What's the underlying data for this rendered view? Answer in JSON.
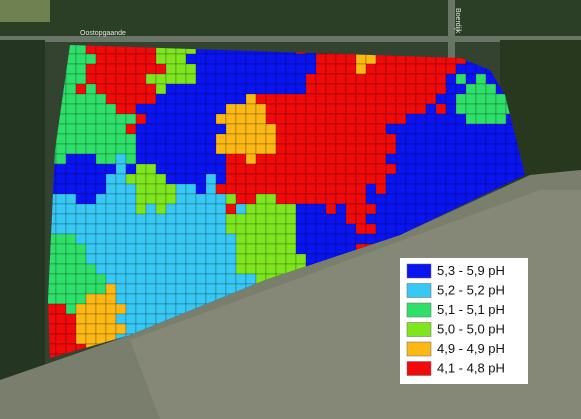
{
  "map": {
    "road_labels": [
      "Oostopgaande",
      "Boerdijk"
    ],
    "legend": [
      {
        "label": "5,3 - 5,9 pH",
        "color": "#0a14f0"
      },
      {
        "label": "5,2 - 5,2 pH",
        "color": "#38c8f4"
      },
      {
        "label": "5,1 - 5,1 pH",
        "color": "#2ee06a"
      },
      {
        "label": "5,0 - 5,0 pH",
        "color": "#7ee61e"
      },
      {
        "label": "4,9 - 4,9 pH",
        "color": "#fcb814"
      },
      {
        "label": "4,1 - 4,8 pH",
        "color": "#f00a0a"
      }
    ]
  }
}
